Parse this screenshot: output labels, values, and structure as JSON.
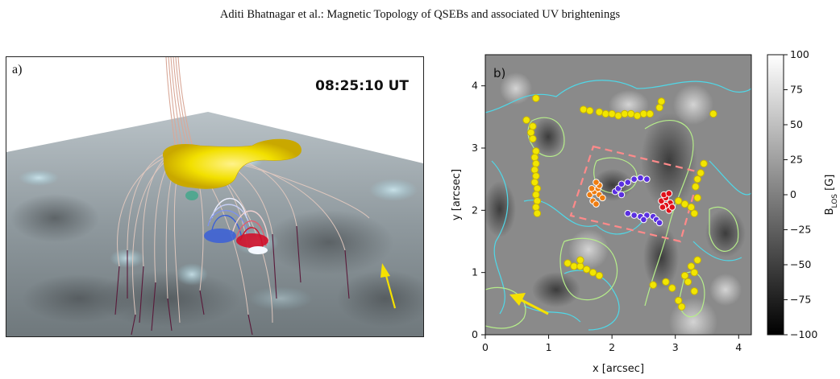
{
  "header": {
    "running_title": "Aditi Bhatnagar  et al.: Magnetic Topology of QSEBs and associated UV brightenings"
  },
  "panel_a": {
    "label": "a)",
    "timestamp": "08:25:10 UT",
    "colors": {
      "flux_tube": "#f2e000",
      "arrow": "#f5e100",
      "fieldlines_closed": "#d9b8a8",
      "fieldlines_open": "#e8a898",
      "footpoints_red": "#d0102a",
      "footpoints_blue": "#3a5fd8",
      "footpoints_dark": "#4a1030"
    }
  },
  "panel_b": {
    "label": "b)",
    "chart_data": {
      "type": "heatmap",
      "xlabel": "x [arcsec]",
      "ylabel": "y [arcsec]",
      "xlim": [
        0,
        4.2
      ],
      "ylim": [
        0,
        4.5
      ],
      "xticks": [
        "0",
        "1",
        "2",
        "3",
        "4"
      ],
      "yticks": [
        "0",
        "1",
        "2",
        "3",
        "4"
      ],
      "colorbar": {
        "label": "B_LOS [G]",
        "range": [
          -100,
          100
        ],
        "ticks": [
          "100",
          "75",
          "50",
          "25",
          "0",
          "−25",
          "−50",
          "−75",
          "−100"
        ]
      },
      "contour_colors": {
        "positive": "#b6ee8a",
        "negative": "#4fd8e8"
      },
      "markers": {
        "yellow": [
          [
            0.65,
            3.45
          ],
          [
            0.75,
            3.35
          ],
          [
            0.72,
            3.25
          ],
          [
            0.75,
            3.15
          ],
          [
            0.8,
            2.95
          ],
          [
            0.78,
            2.85
          ],
          [
            0.8,
            2.75
          ],
          [
            0.78,
            2.65
          ],
          [
            0.8,
            2.55
          ],
          [
            0.78,
            2.45
          ],
          [
            0.82,
            2.35
          ],
          [
            0.8,
            2.25
          ],
          [
            0.82,
            2.15
          ],
          [
            0.8,
            2.05
          ],
          [
            0.82,
            1.95
          ],
          [
            1.55,
            3.62
          ],
          [
            1.65,
            3.6
          ],
          [
            1.8,
            3.58
          ],
          [
            1.9,
            3.55
          ],
          [
            2.0,
            3.55
          ],
          [
            2.1,
            3.52
          ],
          [
            2.2,
            3.55
          ],
          [
            2.3,
            3.55
          ],
          [
            2.4,
            3.52
          ],
          [
            2.5,
            3.55
          ],
          [
            2.6,
            3.55
          ],
          [
            2.75,
            3.65
          ],
          [
            2.78,
            3.75
          ],
          [
            0.8,
            3.8
          ],
          [
            3.6,
            3.55
          ],
          [
            3.45,
            2.75
          ],
          [
            3.4,
            2.6
          ],
          [
            3.35,
            2.5
          ],
          [
            3.32,
            2.38
          ],
          [
            3.35,
            2.2
          ],
          [
            3.25,
            2.05
          ],
          [
            3.15,
            2.1
          ],
          [
            3.05,
            2.15
          ],
          [
            3.3,
            1.95
          ],
          [
            1.3,
            1.15
          ],
          [
            1.4,
            1.1
          ],
          [
            1.5,
            1.1
          ],
          [
            1.6,
            1.05
          ],
          [
            1.7,
            1.0
          ],
          [
            1.8,
            0.95
          ],
          [
            1.5,
            1.2
          ],
          [
            3.15,
            0.95
          ],
          [
            3.2,
            0.85
          ],
          [
            3.3,
            1.0
          ],
          [
            3.25,
            1.1
          ],
          [
            3.35,
            1.2
          ],
          [
            3.3,
            0.7
          ],
          [
            3.05,
            0.55
          ],
          [
            2.95,
            0.75
          ],
          [
            3.1,
            0.45
          ],
          [
            2.65,
            0.8
          ],
          [
            2.85,
            0.85
          ]
        ],
        "orange": [
          [
            1.65,
            2.25
          ],
          [
            1.72,
            2.3
          ],
          [
            1.78,
            2.35
          ],
          [
            1.8,
            2.25
          ],
          [
            1.7,
            2.15
          ],
          [
            1.75,
            2.1
          ],
          [
            1.85,
            2.2
          ],
          [
            1.8,
            2.4
          ],
          [
            1.75,
            2.45
          ],
          [
            1.68,
            2.35
          ]
        ],
        "blue": [
          [
            2.05,
            2.3
          ],
          [
            2.1,
            2.35
          ],
          [
            2.15,
            2.42
          ],
          [
            2.25,
            2.45
          ],
          [
            2.35,
            2.5
          ],
          [
            2.45,
            2.52
          ],
          [
            2.55,
            2.5
          ],
          [
            2.15,
            2.25
          ],
          [
            2.25,
            1.95
          ],
          [
            2.35,
            1.92
          ],
          [
            2.45,
            1.9
          ],
          [
            2.55,
            1.92
          ],
          [
            2.65,
            1.9
          ],
          [
            2.7,
            1.85
          ],
          [
            2.75,
            1.8
          ],
          [
            2.5,
            1.85
          ]
        ],
        "red": [
          [
            2.78,
            2.15
          ],
          [
            2.85,
            2.2
          ],
          [
            2.92,
            2.12
          ],
          [
            2.85,
            2.08
          ],
          [
            2.8,
            2.05
          ],
          [
            2.9,
            2.0
          ],
          [
            2.95,
            2.05
          ],
          [
            2.82,
            2.25
          ],
          [
            2.9,
            2.27
          ]
        ]
      },
      "dashed_box_color": "#ff8a8a"
    }
  }
}
